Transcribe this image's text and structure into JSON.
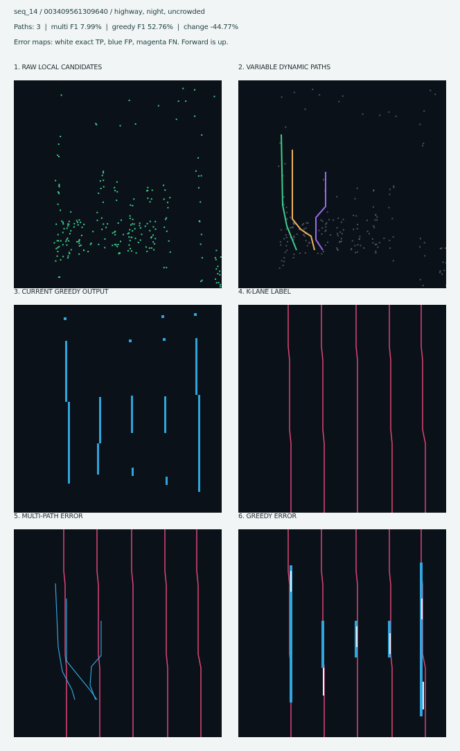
{
  "header": {
    "title": "seq_14 / 003409561309640 / highway, night, uncrowded",
    "stats": "Paths: 3  |  multi F1 7.99%  |  greedy F1 52.76%  |  change -44.77%",
    "legend": "Error maps: white exact TP, blue FP, magenta FN. Forward is up."
  },
  "panels": [
    {
      "title": "1. RAW LOCAL CANDIDATES"
    },
    {
      "title": "2. VARIABLE DYNAMIC PATHS"
    },
    {
      "title": "3. CURRENT GREEDY OUTPUT"
    },
    {
      "title": "4. K-LANE LABEL"
    },
    {
      "title": "5. MULTI-PATH ERROR"
    },
    {
      "title": "6. GREEDY ERROR"
    }
  ]
}
